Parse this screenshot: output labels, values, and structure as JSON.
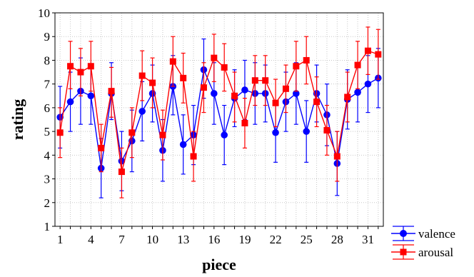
{
  "chart_data": {
    "type": "line",
    "title": "",
    "xlabel": "piece",
    "ylabel": "rating",
    "xlim": [
      0.5,
      32.5
    ],
    "ylim": [
      1,
      10
    ],
    "x_ticks": [
      1,
      4,
      7,
      10,
      13,
      16,
      19,
      22,
      25,
      28,
      31
    ],
    "y_ticks": [
      1,
      2,
      3,
      4,
      5,
      6,
      7,
      8,
      9,
      10
    ],
    "grid": true,
    "legend_position": "bottom-right, outside plot",
    "x": [
      1,
      2,
      3,
      4,
      5,
      6,
      7,
      8,
      9,
      10,
      11,
      12,
      13,
      14,
      15,
      16,
      17,
      18,
      19,
      20,
      21,
      22,
      23,
      24,
      25,
      26,
      27,
      28,
      29,
      30,
      31,
      32
    ],
    "series": [
      {
        "name": "valence",
        "color": "#0000ff",
        "marker": "circle",
        "values": [
          5.6,
          6.25,
          6.7,
          6.5,
          3.45,
          6.6,
          3.75,
          4.6,
          5.85,
          6.6,
          4.2,
          6.9,
          4.45,
          4.85,
          7.6,
          6.6,
          4.85,
          6.4,
          6.75,
          6.6,
          6.6,
          4.95,
          6.25,
          6.6,
          5.0,
          6.6,
          5.7,
          3.65,
          6.35,
          6.65,
          7.0,
          7.25
        ],
        "error_low": [
          4.3,
          5.0,
          5.3,
          5.3,
          2.2,
          5.5,
          2.5,
          3.3,
          4.6,
          5.4,
          2.9,
          5.7,
          3.2,
          3.6,
          6.4,
          5.3,
          3.6,
          5.2,
          5.5,
          5.3,
          5.4,
          3.7,
          5.0,
          5.3,
          3.7,
          5.4,
          4.4,
          2.3,
          5.1,
          5.4,
          5.8,
          6.0
        ],
        "error_high": [
          6.9,
          7.5,
          8.1,
          7.7,
          4.7,
          7.9,
          5.0,
          5.9,
          7.1,
          7.8,
          5.5,
          8.2,
          5.7,
          6.1,
          8.9,
          7.9,
          6.1,
          7.6,
          8.0,
          7.9,
          7.8,
          6.2,
          7.5,
          7.9,
          6.3,
          7.8,
          7.0,
          5.0,
          7.6,
          7.9,
          8.2,
          8.5
        ]
      },
      {
        "name": "arousal",
        "color": "#ff0000",
        "marker": "square",
        "values": [
          4.95,
          7.75,
          7.5,
          7.75,
          4.3,
          6.7,
          3.3,
          4.95,
          7.35,
          7.05,
          4.85,
          7.95,
          7.25,
          3.95,
          6.85,
          8.1,
          7.7,
          6.5,
          5.35,
          7.15,
          7.15,
          6.2,
          6.8,
          7.75,
          8.0,
          6.25,
          5.05,
          3.95,
          6.45,
          7.8,
          8.4,
          8.25
        ],
        "error_low": [
          3.9,
          6.8,
          6.5,
          6.7,
          3.3,
          5.6,
          2.2,
          3.9,
          6.3,
          6.0,
          3.8,
          6.9,
          6.2,
          2.9,
          5.8,
          7.1,
          6.7,
          5.4,
          4.3,
          6.1,
          6.1,
          5.2,
          5.8,
          6.7,
          7.0,
          5.2,
          4.0,
          2.9,
          5.4,
          6.8,
          7.4,
          7.2
        ],
        "error_high": [
          6.0,
          8.8,
          8.5,
          8.8,
          5.3,
          7.7,
          4.3,
          6.0,
          8.4,
          8.1,
          5.9,
          9.0,
          8.3,
          5.0,
          7.9,
          9.1,
          8.7,
          7.5,
          6.4,
          8.2,
          8.2,
          7.2,
          7.8,
          8.8,
          9.0,
          7.3,
          6.1,
          5.0,
          7.5,
          8.8,
          9.4,
          9.3
        ]
      }
    ]
  }
}
